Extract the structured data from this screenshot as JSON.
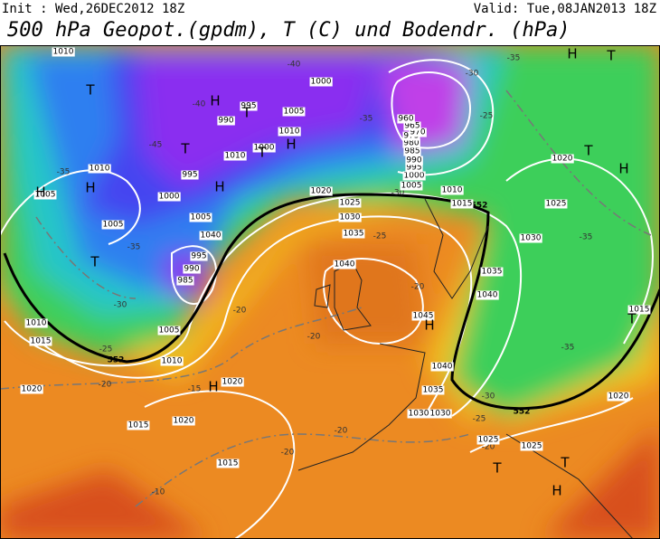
{
  "header": {
    "init": "Init : Wed,26DEC2012 18Z",
    "valid": "Valid: Tue,08JAN2013 18Z",
    "title": "500 hPa Geopot.(gpdm), T (C) und Bodendr. (hPa)"
  },
  "map": {
    "pressure_labels": [
      "1010",
      "1000",
      "995",
      "990",
      "1005",
      "1010",
      "1000",
      "1010",
      "995",
      "1000",
      "1005",
      "1010",
      "1005",
      "1005",
      "1040",
      "995",
      "990",
      "985",
      "1010",
      "1015",
      "1005",
      "1010",
      "1020",
      "1015",
      "1020",
      "1020",
      "1015",
      "1020",
      "1025",
      "1030",
      "1035",
      "1040",
      "1045",
      "1040",
      "1035",
      "1030",
      "1030",
      "1025",
      "1025",
      "1020",
      "1015",
      "1020",
      "1025",
      "1030",
      "1035",
      "1040",
      "1010",
      "1015",
      "1005",
      "1000",
      "995",
      "990",
      "985",
      "980",
      "975",
      "970",
      "965",
      "960"
    ],
    "temperature_labels": [
      "-40",
      "-40",
      "-35",
      "-30",
      "-35",
      "-25",
      "-45",
      "-35",
      "-35",
      "-30",
      "-25",
      "-20",
      "-15",
      "-20",
      "-20",
      "-25",
      "-20",
      "-30",
      "-35",
      "-35",
      "-30",
      "-25",
      "-20",
      "-20",
      "-20",
      "-10"
    ],
    "geopotential_labels": [
      "552",
      "552",
      "552"
    ],
    "highs": [
      "H",
      "H",
      "H",
      "H",
      "H",
      "H",
      "H",
      "H",
      "H",
      "H"
    ],
    "lows": [
      "T",
      "T",
      "T",
      "T",
      "T",
      "T",
      "T",
      "T",
      "T",
      "T"
    ]
  }
}
